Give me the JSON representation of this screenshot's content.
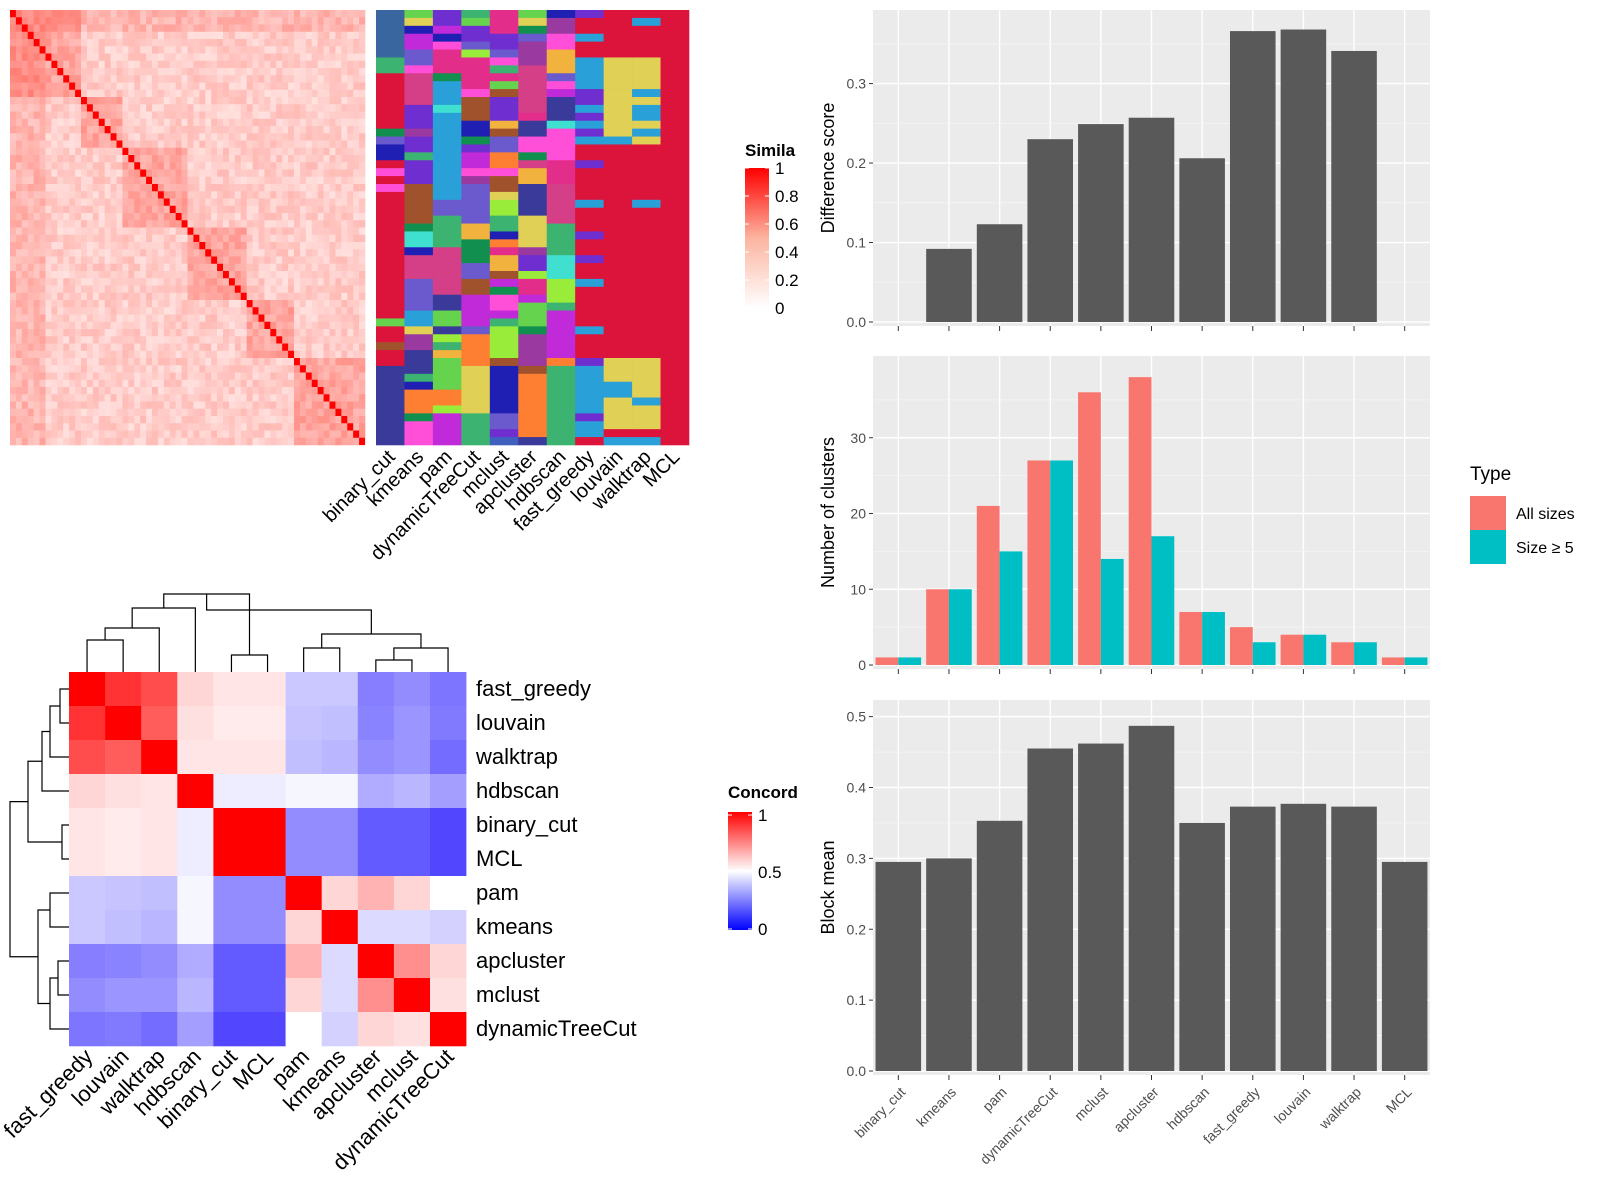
{
  "methods_order": [
    "binary_cut",
    "kmeans",
    "pam",
    "dynamicTreeCut",
    "mclust",
    "apcluster",
    "hdbscan",
    "fast_greedy",
    "louvain",
    "walktrap",
    "MCL"
  ],
  "colors": {
    "panel_bg": "#ebebeb",
    "bar_gray": "#595959",
    "all_sizes": "#f8766d",
    "size_ge5": "#00bfc4",
    "similarity_high": "#ff0000",
    "concord_high": "#ff0000",
    "concord_mid": "#ffffff",
    "concord_low": "#0000ff",
    "mcl_bg": "#dc143c"
  },
  "similarity_legend": {
    "title": "Simila",
    "ticks": [
      "1",
      "0.8",
      "0.6",
      "0.4",
      "0.2",
      "0"
    ]
  },
  "concordance_legend": {
    "title": "Concord",
    "ticks": [
      "1",
      "0.5",
      "0"
    ]
  },
  "concordance": {
    "order": [
      "fast_greedy",
      "louvain",
      "walktrap",
      "hdbscan",
      "binary_cut",
      "MCL",
      "pam",
      "kmeans",
      "apcluster",
      "mclust",
      "dynamicTreeCut"
    ],
    "matrix": [
      [
        1.0,
        0.9,
        0.85,
        0.58,
        0.55,
        0.55,
        0.38,
        0.38,
        0.22,
        0.25,
        0.2
      ],
      [
        0.9,
        1.0,
        0.82,
        0.56,
        0.54,
        0.54,
        0.37,
        0.36,
        0.23,
        0.27,
        0.21
      ],
      [
        0.85,
        0.82,
        1.0,
        0.55,
        0.55,
        0.55,
        0.36,
        0.34,
        0.25,
        0.27,
        0.18
      ],
      [
        0.58,
        0.56,
        0.55,
        1.0,
        0.46,
        0.46,
        0.48,
        0.48,
        0.32,
        0.34,
        0.29
      ],
      [
        0.55,
        0.54,
        0.55,
        0.46,
        1.0,
        1.0,
        0.25,
        0.25,
        0.14,
        0.14,
        0.1
      ],
      [
        0.55,
        0.54,
        0.55,
        0.46,
        1.0,
        1.0,
        0.25,
        0.25,
        0.14,
        0.14,
        0.1
      ],
      [
        0.38,
        0.37,
        0.36,
        0.48,
        0.25,
        0.25,
        1.0,
        0.58,
        0.65,
        0.58,
        0.5
      ],
      [
        0.38,
        0.36,
        0.34,
        0.48,
        0.25,
        0.25,
        0.58,
        1.0,
        0.42,
        0.42,
        0.4
      ],
      [
        0.22,
        0.23,
        0.25,
        0.32,
        0.14,
        0.14,
        0.65,
        0.42,
        1.0,
        0.72,
        0.58
      ],
      [
        0.25,
        0.27,
        0.27,
        0.34,
        0.14,
        0.14,
        0.58,
        0.42,
        0.72,
        1.0,
        0.56
      ],
      [
        0.2,
        0.21,
        0.18,
        0.29,
        0.1,
        0.1,
        0.5,
        0.4,
        0.58,
        0.56,
        1.0
      ]
    ]
  },
  "chart_data": [
    {
      "type": "bar",
      "categories": [
        "binary_cut",
        "kmeans",
        "pam",
        "dynamicTreeCut",
        "mclust",
        "apcluster",
        "hdbscan",
        "fast_greedy",
        "louvain",
        "walktrap",
        "MCL"
      ],
      "values": [
        null,
        0.092,
        0.123,
        0.23,
        0.249,
        0.257,
        0.206,
        0.366,
        0.368,
        0.341,
        null
      ],
      "ylabel": "Difference score",
      "yticks": [
        "0.0",
        "0.1",
        "0.2",
        "0.3"
      ],
      "ylim": [
        0,
        0.385
      ],
      "grid": true
    },
    {
      "type": "bar",
      "categories": [
        "binary_cut",
        "kmeans",
        "pam",
        "dynamicTreeCut",
        "mclust",
        "apcluster",
        "hdbscan",
        "fast_greedy",
        "louvain",
        "walktrap",
        "MCL"
      ],
      "series": [
        {
          "name": "All sizes",
          "values": [
            1,
            10,
            21,
            27,
            36,
            38,
            7,
            5,
            4,
            3,
            1
          ]
        },
        {
          "name": "Size ≥ 5",
          "values": [
            1,
            10,
            15,
            27,
            14,
            17,
            7,
            3,
            4,
            3,
            1
          ]
        }
      ],
      "ylabel": "Number of clusters",
      "yticks": [
        "0",
        "10",
        "20",
        "30"
      ],
      "ylim": [
        0,
        40
      ],
      "legend": {
        "title": "Type",
        "placement": "right"
      },
      "grid": true
    },
    {
      "type": "bar",
      "categories": [
        "binary_cut",
        "kmeans",
        "pam",
        "dynamicTreeCut",
        "mclust",
        "apcluster",
        "hdbscan",
        "fast_greedy",
        "louvain",
        "walktrap",
        "MCL"
      ],
      "values": [
        0.295,
        0.3,
        0.353,
        0.455,
        0.462,
        0.487,
        0.35,
        0.373,
        0.377,
        0.373,
        0.295
      ],
      "ylabel": "Block mean",
      "yticks": [
        "0.0",
        "0.1",
        "0.2",
        "0.3",
        "0.4",
        "0.5"
      ],
      "ylim": [
        0,
        0.515
      ],
      "grid": true
    }
  ]
}
